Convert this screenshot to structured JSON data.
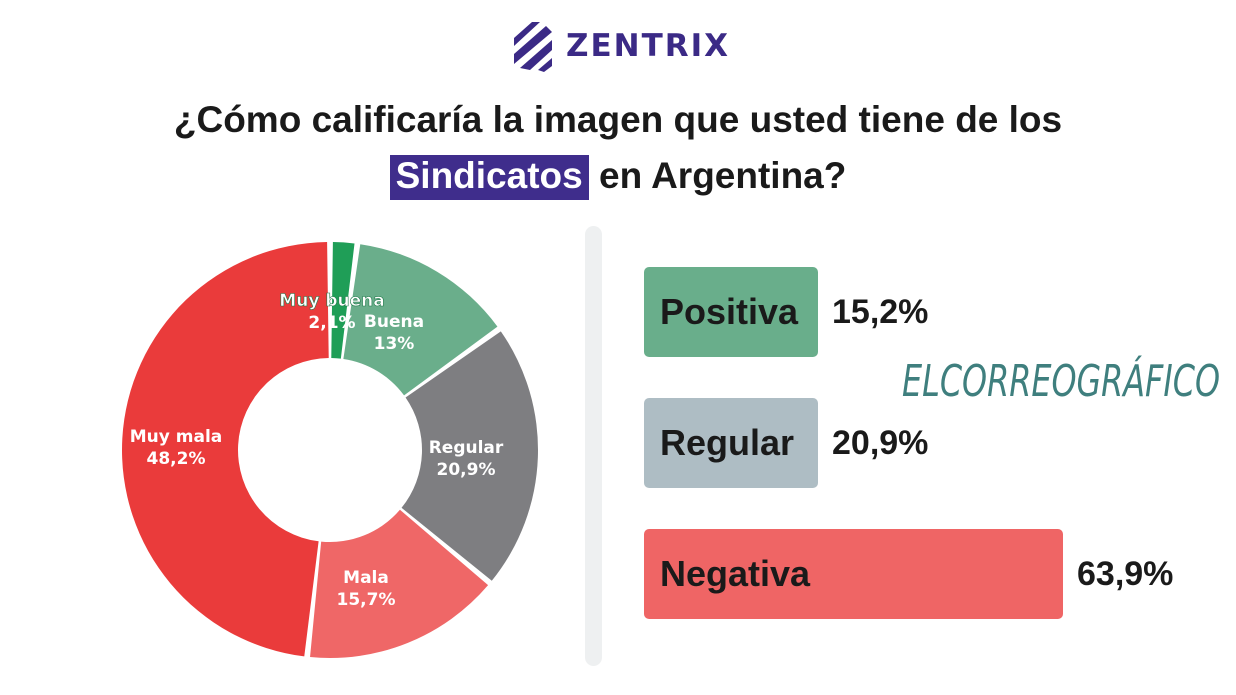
{
  "brand": {
    "name": "ZENTRIX",
    "logo_icon": "zentrix-stripes-icon",
    "color": "#3b2a86"
  },
  "title": {
    "line1": "¿Cómo calificaría la imagen que usted tiene de los",
    "highlight": "Sindicatos",
    "line2_rest": "en Argentina?"
  },
  "watermark": "ELCORREOGRÁFICO",
  "chart_data": [
    {
      "type": "pie",
      "donut": true,
      "slices": [
        {
          "label": "Muy buena",
          "display": "2,1%",
          "value": 2.1,
          "color": "#1f9e57"
        },
        {
          "label": "Buena",
          "display": "13%",
          "value": 13.0,
          "color": "#6aae8b"
        },
        {
          "label": "Regular",
          "display": "20,9%",
          "value": 20.9,
          "color": "#7e7e81"
        },
        {
          "label": "Mala",
          "display": "15,7%",
          "value": 15.7,
          "color": "#ef6767"
        },
        {
          "label": "Muy mala",
          "display": "48,2%",
          "value": 48.2,
          "color": "#ea3b3b"
        }
      ]
    },
    {
      "type": "bar",
      "orientation": "horizontal",
      "categories": [
        "Positiva",
        "Regular",
        "Negativa"
      ],
      "values": [
        15.2,
        20.9,
        63.9
      ],
      "value_labels": [
        "15,2%",
        "20,9%",
        "63,9%"
      ],
      "colors": [
        "#69ae8b",
        "#aebdc4",
        "#ef6565"
      ]
    }
  ]
}
